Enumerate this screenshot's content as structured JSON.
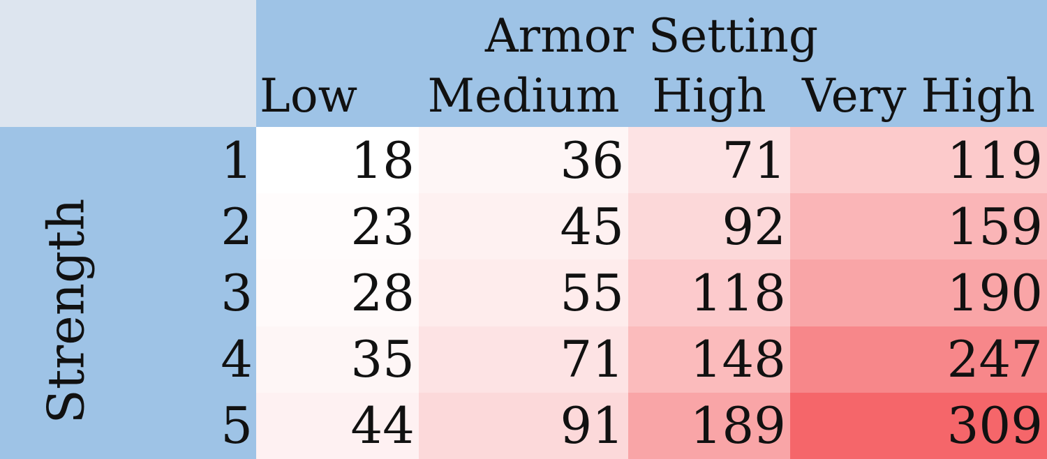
{
  "colors": {
    "header_bg": "#9ec3e6",
    "corner_bg": "#dde5ef",
    "low_color": "#ffffff",
    "high_color": "#f5666a"
  },
  "chart_data": {
    "type": "table",
    "title": "Armor Setting",
    "column_axis_label": "Armor Setting",
    "row_axis_label": "Strength",
    "columns": [
      "Low",
      "Medium",
      "High",
      "Very High"
    ],
    "rows": [
      "1",
      "2",
      "3",
      "4",
      "5"
    ],
    "values": [
      [
        18,
        36,
        71,
        119
      ],
      [
        23,
        45,
        92,
        159
      ],
      [
        28,
        55,
        118,
        190
      ],
      [
        35,
        71,
        148,
        247
      ],
      [
        44,
        91,
        189,
        309
      ]
    ],
    "color_scale": {
      "min": 18,
      "max": 309
    }
  }
}
